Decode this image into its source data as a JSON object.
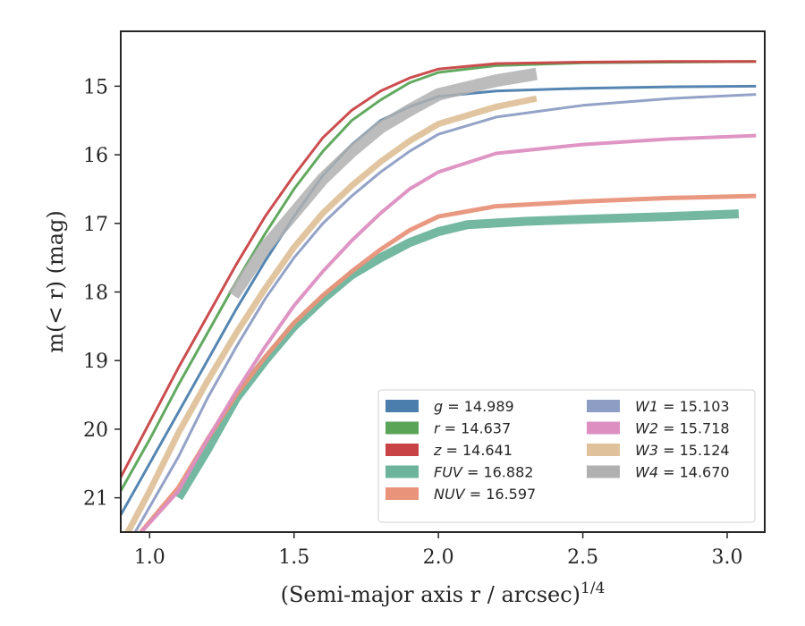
{
  "chart_data": {
    "type": "line",
    "xlabel": "(Semi-major axis r / arcsec)",
    "xlabel_exponent": "1/4",
    "ylabel": "m(< r) (mag)",
    "xlim": [
      0.9,
      3.13
    ],
    "ylim": [
      21.5,
      14.2
    ],
    "y_inverted": true,
    "grid": false,
    "legend_position": "lower-right",
    "x_ticks": [
      "1.0",
      "1.5",
      "2.0",
      "2.5",
      "3.0"
    ],
    "y_ticks": [
      "15",
      "16",
      "17",
      "18",
      "19",
      "20",
      "21"
    ],
    "series": [
      {
        "name": "g",
        "label": "14.989",
        "color": "#4c7ead",
        "x": [
          0.9,
          1.0,
          1.1,
          1.2,
          1.3,
          1.4,
          1.5,
          1.6,
          1.7,
          1.8,
          1.9,
          2.0,
          2.2,
          2.5,
          2.8,
          3.1
        ],
        "y": [
          21.25,
          20.5,
          19.75,
          19.0,
          18.25,
          17.55,
          16.9,
          16.3,
          15.85,
          15.5,
          15.3,
          15.15,
          15.07,
          15.03,
          15.01,
          15.0
        ]
      },
      {
        "name": "r",
        "label": "14.637",
        "color": "#5aa457",
        "x": [
          0.9,
          1.0,
          1.1,
          1.2,
          1.3,
          1.4,
          1.5,
          1.6,
          1.7,
          1.8,
          1.9,
          2.0,
          2.2,
          2.5,
          2.8,
          3.1
        ],
        "y": [
          20.9,
          20.15,
          19.35,
          18.6,
          17.85,
          17.15,
          16.5,
          15.95,
          15.5,
          15.2,
          14.95,
          14.8,
          14.7,
          14.66,
          14.65,
          14.64
        ]
      },
      {
        "name": "z",
        "label": "14.641",
        "color": "#c84346",
        "x": [
          0.9,
          1.0,
          1.1,
          1.2,
          1.3,
          1.4,
          1.5,
          1.6,
          1.7,
          1.8,
          1.9,
          2.0,
          2.2,
          2.5,
          2.8,
          3.1
        ],
        "y": [
          20.7,
          19.9,
          19.1,
          18.35,
          17.6,
          16.9,
          16.3,
          15.75,
          15.35,
          15.07,
          14.88,
          14.75,
          14.67,
          14.65,
          14.64,
          14.64
        ]
      },
      {
        "name": "FUV",
        "label": "16.882",
        "color": "#6db49c",
        "x": [
          1.1,
          1.2,
          1.3,
          1.4,
          1.5,
          1.6,
          1.7,
          1.8,
          1.9,
          2.0,
          2.1,
          2.3,
          2.5,
          2.8,
          3.04
        ],
        "y": [
          21.0,
          20.3,
          19.55,
          19.0,
          18.5,
          18.1,
          17.75,
          17.5,
          17.28,
          17.12,
          17.02,
          16.97,
          16.94,
          16.9,
          16.86
        ]
      },
      {
        "name": "NUV",
        "label": "16.597",
        "color": "#e8937a",
        "x": [
          0.95,
          1.1,
          1.2,
          1.3,
          1.4,
          1.5,
          1.6,
          1.7,
          1.8,
          1.9,
          2.0,
          2.2,
          2.5,
          2.8,
          3.1
        ],
        "y": [
          21.6,
          20.85,
          20.15,
          19.5,
          18.95,
          18.45,
          18.05,
          17.7,
          17.38,
          17.1,
          16.9,
          16.75,
          16.68,
          16.63,
          16.6
        ]
      },
      {
        "name": "W1",
        "label": "15.103",
        "color": "#8d9dc3",
        "x": [
          0.95,
          1.1,
          1.2,
          1.3,
          1.4,
          1.5,
          1.6,
          1.7,
          1.8,
          1.9,
          2.0,
          2.2,
          2.5,
          2.8,
          3.1
        ],
        "y": [
          21.5,
          20.4,
          19.55,
          18.8,
          18.1,
          17.5,
          17.0,
          16.6,
          16.25,
          15.95,
          15.7,
          15.45,
          15.28,
          15.18,
          15.12
        ]
      },
      {
        "name": "W2",
        "label": "15.718",
        "color": "#dd8fc1",
        "x": [
          0.95,
          1.1,
          1.2,
          1.3,
          1.4,
          1.5,
          1.6,
          1.7,
          1.8,
          1.9,
          2.0,
          2.2,
          2.5,
          2.8,
          3.1
        ],
        "y": [
          21.6,
          20.9,
          20.15,
          19.45,
          18.8,
          18.2,
          17.7,
          17.25,
          16.85,
          16.5,
          16.25,
          15.98,
          15.85,
          15.77,
          15.72
        ]
      },
      {
        "name": "W3",
        "label": "15.124",
        "color": "#dfc29b",
        "x": [
          0.9,
          1.0,
          1.1,
          1.2,
          1.3,
          1.4,
          1.5,
          1.6,
          1.7,
          1.8,
          1.9,
          2.0,
          2.2,
          2.34
        ],
        "y": [
          21.7,
          20.9,
          20.05,
          19.3,
          18.6,
          17.95,
          17.35,
          16.85,
          16.45,
          16.1,
          15.8,
          15.55,
          15.3,
          15.18
        ]
      },
      {
        "name": "W4",
        "label": "14.670",
        "color": "#b0b0b0",
        "x": [
          1.29,
          1.4,
          1.5,
          1.6,
          1.7,
          1.8,
          1.9,
          2.0,
          2.2,
          2.34
        ],
        "y": [
          18.05,
          17.35,
          16.85,
          16.35,
          15.95,
          15.6,
          15.35,
          15.12,
          14.92,
          14.82
        ]
      }
    ]
  }
}
